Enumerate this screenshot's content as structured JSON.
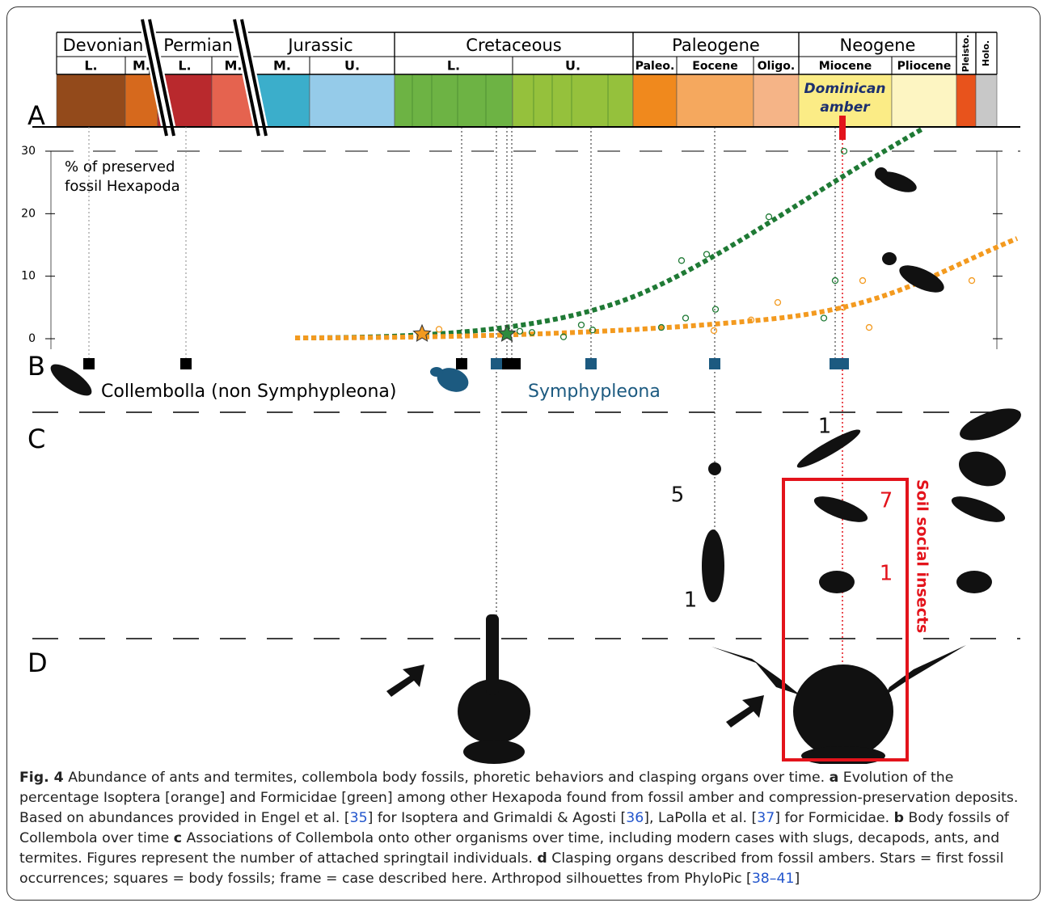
{
  "timeline": {
    "eras": [
      {
        "name": "Devonian",
        "epochs": [
          "L.",
          "M."
        ]
      },
      {
        "name": "Permian",
        "epochs": [
          "L.",
          "M."
        ]
      },
      {
        "name": "Jurassic",
        "epochs": [
          "M.",
          "U."
        ]
      },
      {
        "name": "Cretaceous",
        "epochs": [
          "L.",
          "U."
        ]
      },
      {
        "name": "Paleogene",
        "epochs": [
          "Paleo.",
          "Eocene",
          "Oligo."
        ]
      },
      {
        "name": "Neogene",
        "epochs": [
          "Miocene",
          "Pliocene"
        ]
      },
      {
        "name": "Pleisto.",
        "epochs": []
      },
      {
        "name": "Holo.",
        "epochs": []
      }
    ],
    "band_colors": [
      "#934a1b",
      "#d6691d",
      "#b9292d",
      "#e5634f",
      "#3baecb",
      "#95cbe9",
      "#6db344",
      "#95c13c",
      "#f0891d",
      "#f5a85e",
      "#f5b487",
      "#fbec86",
      "#fdf5c2",
      "#e8531c",
      "#c8c8c8"
    ],
    "amber": [
      "Dominican",
      "amber"
    ]
  },
  "sections": [
    "A",
    "B",
    "C",
    "D"
  ],
  "plot": {
    "ylabel": [
      "% of preserved",
      "fossil Hexapoda"
    ],
    "ylim": [
      0,
      30
    ],
    "yticks": [
      0,
      10,
      20,
      30
    ],
    "series": [
      {
        "name": "Formicidae",
        "color": "#1f7a35",
        "values": [
          1.2,
          1,
          0.3,
          2.2,
          1.4,
          1.8,
          3.3,
          12.5,
          13.5,
          4.7,
          19.5,
          3.3,
          9.3,
          30
        ]
      },
      {
        "name": "Isoptera",
        "color": "#f39a1f",
        "values": [
          1.5,
          1.3,
          3,
          5.8,
          9.3,
          1.8,
          9.3,
          5
        ]
      }
    ]
  },
  "groups": [
    "Collembolla (non Symphypleona)",
    "Symphypleona"
  ],
  "counts": [
    1,
    5,
    7,
    1,
    1
  ],
  "frame_label": "Soil social insects",
  "caption": [
    "Fig. 4",
    " Abundance of ants and termites, collembola body fossils, phoretic behaviors and clasping organs over time. ",
    "a",
    " Evolution of the percentage Isoptera [orange] and Formicidae [green] among other Hexapoda found from fossil amber and compression-preservation deposits. Based on abundances provided in Engel et al. [",
    "35",
    "] for Isoptera and Grimaldi & Agosti [",
    "36",
    "], LaPolla et al. [",
    "37",
    "] for Formicidae. ",
    "b",
    " Body fossils of Collembola over time ",
    "c",
    " Associations of Collembola onto other organisms over time, including modern cases with slugs, decapods, ants, and termites. Figures represent the number of attached springtail individuals. ",
    "d",
    " Clasping organs described from fossil ambers. Stars = first fossil occurrences; squares = body fossils; frame = case described here. Arthropod silhouettes from PhyloPic [",
    "38–41",
    "]"
  ]
}
